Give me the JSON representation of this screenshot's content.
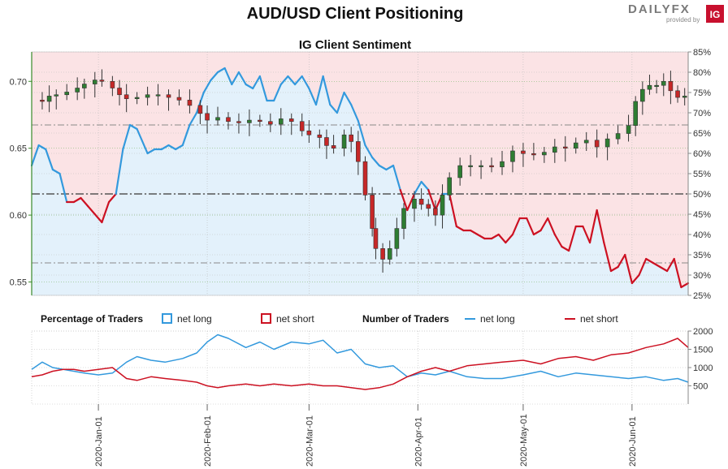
{
  "header": {
    "title": "AUD/USD Client Positioning",
    "logo_text": "DAILYFX",
    "logo_sub": "provided by",
    "logo_badge": "IG"
  },
  "colors": {
    "long": "#3399dd",
    "short": "#cc1122",
    "long_fill": "#e3f1fb",
    "short_fill": "#fbe3e5",
    "up_candle": "#2e7d32",
    "down_candle": "#c62828",
    "left_axis": "#3a8a2a"
  },
  "chart_data": [
    {
      "type": "line",
      "title": "IG Client Sentiment",
      "description_series": [
        "AUD/USD price candles",
        "Client net long %"
      ],
      "left_axis": {
        "ticks": [
          "0.70",
          "0.65",
          "0.60",
          "0.55"
        ],
        "values": [
          0.7,
          0.65,
          0.6,
          0.55
        ],
        "ylim": [
          0.54,
          0.722
        ]
      },
      "right_axis": {
        "ticks": [
          "85%",
          "80%",
          "75%",
          "70%",
          "65%",
          "60%",
          "55%",
          "50%",
          "45%",
          "40%",
          "35%",
          "30%",
          "25%"
        ],
        "values": [
          85,
          80,
          75,
          70,
          65,
          60,
          55,
          50,
          45,
          40,
          35,
          30,
          25
        ],
        "ylim": [
          25,
          85
        ]
      },
      "x_range": [
        "2019-12-13",
        "2020-06-17"
      ],
      "x_ticks": [
        "2020-Jan-01",
        "2020-Feb-01",
        "2020-Mar-01",
        "2020-Apr-01",
        "2020-May-01",
        "2020-Jun-01"
      ],
      "x_tick_dates": [
        "2020-01-01",
        "2020-02-01",
        "2020-03-01",
        "2020-04-01",
        "2020-05-01",
        "2020-06-01"
      ],
      "reference_lines_pct": [
        50,
        33,
        67
      ],
      "price_close_points": [
        [
          "2019-12-13",
          0.686
        ],
        [
          "2019-12-16",
          0.685
        ],
        [
          "2019-12-18",
          0.689
        ],
        [
          "2019-12-20",
          0.69
        ],
        [
          "2019-12-23",
          0.692
        ],
        [
          "2019-12-26",
          0.695
        ],
        [
          "2019-12-28",
          0.698
        ],
        [
          "2019-12-31",
          0.701
        ],
        [
          "2020-01-02",
          0.7
        ],
        [
          "2020-01-05",
          0.695
        ],
        [
          "2020-01-07",
          0.69
        ],
        [
          "2020-01-09",
          0.687
        ],
        [
          "2020-01-12",
          0.688
        ],
        [
          "2020-01-15",
          0.69
        ],
        [
          "2020-01-18",
          0.69
        ],
        [
          "2020-01-21",
          0.688
        ],
        [
          "2020-01-24",
          0.686
        ],
        [
          "2020-01-27",
          0.682
        ],
        [
          "2020-01-30",
          0.676
        ],
        [
          "2020-02-01",
          0.671
        ],
        [
          "2020-02-04",
          0.673
        ],
        [
          "2020-02-07",
          0.67
        ],
        [
          "2020-02-10",
          0.669
        ],
        [
          "2020-02-13",
          0.671
        ],
        [
          "2020-02-16",
          0.67
        ],
        [
          "2020-02-19",
          0.668
        ],
        [
          "2020-02-22",
          0.672
        ],
        [
          "2020-02-25",
          0.67
        ],
        [
          "2020-02-28",
          0.663
        ],
        [
          "2020-03-01",
          0.66
        ],
        [
          "2020-03-04",
          0.658
        ],
        [
          "2020-03-06",
          0.652
        ],
        [
          "2020-03-08",
          0.65
        ],
        [
          "2020-03-11",
          0.66
        ],
        [
          "2020-03-13",
          0.655
        ],
        [
          "2020-03-15",
          0.64
        ],
        [
          "2020-03-17",
          0.615
        ],
        [
          "2020-03-19",
          0.59
        ],
        [
          "2020-03-20",
          0.575
        ],
        [
          "2020-03-22",
          0.567
        ],
        [
          "2020-03-24",
          0.575
        ],
        [
          "2020-03-26",
          0.59
        ],
        [
          "2020-03-28",
          0.605
        ],
        [
          "2020-03-31",
          0.612
        ],
        [
          "2020-04-02",
          0.608
        ],
        [
          "2020-04-04",
          0.605
        ],
        [
          "2020-04-06",
          0.6
        ],
        [
          "2020-04-08",
          0.615
        ],
        [
          "2020-04-10",
          0.628
        ],
        [
          "2020-04-13",
          0.637
        ],
        [
          "2020-04-16",
          0.637
        ],
        [
          "2020-04-19",
          0.637
        ],
        [
          "2020-04-22",
          0.636
        ],
        [
          "2020-04-25",
          0.64
        ],
        [
          "2020-04-28",
          0.648
        ],
        [
          "2020-05-01",
          0.646
        ],
        [
          "2020-05-04",
          0.645
        ],
        [
          "2020-05-07",
          0.647
        ],
        [
          "2020-05-10",
          0.651
        ],
        [
          "2020-05-13",
          0.65
        ],
        [
          "2020-05-16",
          0.654
        ],
        [
          "2020-05-19",
          0.656
        ],
        [
          "2020-05-22",
          0.651
        ],
        [
          "2020-05-25",
          0.657
        ],
        [
          "2020-05-28",
          0.661
        ],
        [
          "2020-05-31",
          0.667
        ],
        [
          "2020-06-02",
          0.685
        ],
        [
          "2020-06-04",
          0.694
        ],
        [
          "2020-06-06",
          0.697
        ],
        [
          "2020-06-08",
          0.697
        ],
        [
          "2020-06-10",
          0.7
        ],
        [
          "2020-06-12",
          0.693
        ],
        [
          "2020-06-14",
          0.688
        ],
        [
          "2020-06-16",
          0.689
        ]
      ],
      "net_long_pct_points": [
        [
          "2019-12-13",
          57
        ],
        [
          "2019-12-15",
          62
        ],
        [
          "2019-12-17",
          61
        ],
        [
          "2019-12-19",
          56
        ],
        [
          "2019-12-21",
          55
        ],
        [
          "2019-12-23",
          48
        ],
        [
          "2019-12-25",
          48
        ],
        [
          "2019-12-27",
          49
        ],
        [
          "2019-12-29",
          47
        ],
        [
          "2019-12-31",
          45
        ],
        [
          "2020-01-02",
          43
        ],
        [
          "2020-01-04",
          48
        ],
        [
          "2020-01-06",
          50
        ],
        [
          "2020-01-08",
          61
        ],
        [
          "2020-01-10",
          67
        ],
        [
          "2020-01-12",
          66
        ],
        [
          "2020-01-15",
          60
        ],
        [
          "2020-01-17",
          61
        ],
        [
          "2020-01-19",
          61
        ],
        [
          "2020-01-21",
          62
        ],
        [
          "2020-01-23",
          61
        ],
        [
          "2020-01-25",
          62
        ],
        [
          "2020-01-27",
          67
        ],
        [
          "2020-01-29",
          70
        ],
        [
          "2020-01-31",
          75
        ],
        [
          "2020-02-02",
          78
        ],
        [
          "2020-02-04",
          80
        ],
        [
          "2020-02-06",
          81
        ],
        [
          "2020-02-08",
          77
        ],
        [
          "2020-02-10",
          80
        ],
        [
          "2020-02-12",
          77
        ],
        [
          "2020-02-14",
          76
        ],
        [
          "2020-02-16",
          79
        ],
        [
          "2020-02-18",
          73
        ],
        [
          "2020-02-20",
          73
        ],
        [
          "2020-02-22",
          77
        ],
        [
          "2020-02-24",
          79
        ],
        [
          "2020-02-26",
          77
        ],
        [
          "2020-02-28",
          79
        ],
        [
          "2020-03-01",
          76
        ],
        [
          "2020-03-03",
          72
        ],
        [
          "2020-03-05",
          79
        ],
        [
          "2020-03-07",
          72
        ],
        [
          "2020-03-09",
          70
        ],
        [
          "2020-03-11",
          75
        ],
        [
          "2020-03-13",
          72
        ],
        [
          "2020-03-15",
          68
        ],
        [
          "2020-03-17",
          62
        ],
        [
          "2020-03-19",
          59
        ],
        [
          "2020-03-21",
          57
        ],
        [
          "2020-03-23",
          56
        ],
        [
          "2020-03-25",
          57
        ],
        [
          "2020-03-27",
          51
        ],
        [
          "2020-03-29",
          46
        ],
        [
          "2020-03-31",
          50
        ],
        [
          "2020-04-02",
          53
        ],
        [
          "2020-04-04",
          51
        ],
        [
          "2020-04-06",
          46
        ],
        [
          "2020-04-08",
          50
        ],
        [
          "2020-04-10",
          50
        ],
        [
          "2020-04-12",
          42
        ],
        [
          "2020-04-14",
          41
        ],
        [
          "2020-04-16",
          41
        ],
        [
          "2020-04-18",
          40
        ],
        [
          "2020-04-20",
          39
        ],
        [
          "2020-04-22",
          39
        ],
        [
          "2020-04-24",
          40
        ],
        [
          "2020-04-26",
          38
        ],
        [
          "2020-04-28",
          40
        ],
        [
          "2020-04-30",
          44
        ],
        [
          "2020-05-02",
          44
        ],
        [
          "2020-05-04",
          40
        ],
        [
          "2020-05-06",
          41
        ],
        [
          "2020-05-08",
          44
        ],
        [
          "2020-05-10",
          40
        ],
        [
          "2020-05-12",
          37
        ],
        [
          "2020-05-14",
          36
        ],
        [
          "2020-05-16",
          42
        ],
        [
          "2020-05-18",
          42
        ],
        [
          "2020-05-20",
          38
        ],
        [
          "2020-05-22",
          46
        ],
        [
          "2020-05-24",
          38
        ],
        [
          "2020-05-26",
          31
        ],
        [
          "2020-05-28",
          32
        ],
        [
          "2020-05-30",
          35
        ],
        [
          "2020-06-01",
          28
        ],
        [
          "2020-06-03",
          30
        ],
        [
          "2020-06-05",
          34
        ],
        [
          "2020-06-07",
          33
        ],
        [
          "2020-06-09",
          32
        ],
        [
          "2020-06-11",
          31
        ],
        [
          "2020-06-13",
          34
        ],
        [
          "2020-06-15",
          27
        ],
        [
          "2020-06-17",
          28
        ]
      ]
    },
    {
      "type": "line",
      "title": "",
      "legend": {
        "percentage_label": "Percentage of Traders",
        "number_label": "Number of Traders",
        "items": [
          {
            "name": "net long",
            "kind": "box",
            "color_key": "long"
          },
          {
            "name": "net short",
            "kind": "box",
            "color_key": "short"
          },
          {
            "name": "net long",
            "kind": "line",
            "color_key": "long"
          },
          {
            "name": "net short",
            "kind": "line",
            "color_key": "short"
          }
        ]
      },
      "y_ticks": [
        "2000",
        "1500",
        "1000",
        "500"
      ],
      "y_values": [
        2000,
        1500,
        1000,
        500
      ],
      "ylim": [
        0,
        2000
      ],
      "x_range": [
        "2019-12-13",
        "2020-06-17"
      ],
      "series": [
        {
          "name": "net long",
          "points": [
            [
              "2019-12-13",
              950
            ],
            [
              "2019-12-16",
              1150
            ],
            [
              "2019-12-19",
              1000
            ],
            [
              "2019-12-22",
              950
            ],
            [
              "2019-12-25",
              900
            ],
            [
              "2019-12-28",
              850
            ],
            [
              "2020-01-01",
              800
            ],
            [
              "2020-01-05",
              850
            ],
            [
              "2020-01-09",
              1150
            ],
            [
              "2020-01-12",
              1300
            ],
            [
              "2020-01-16",
              1200
            ],
            [
              "2020-01-20",
              1150
            ],
            [
              "2020-01-25",
              1250
            ],
            [
              "2020-01-29",
              1400
            ],
            [
              "2020-02-01",
              1700
            ],
            [
              "2020-02-04",
              1900
            ],
            [
              "2020-02-07",
              1800
            ],
            [
              "2020-02-12",
              1550
            ],
            [
              "2020-02-16",
              1700
            ],
            [
              "2020-02-20",
              1500
            ],
            [
              "2020-02-25",
              1700
            ],
            [
              "2020-03-01",
              1650
            ],
            [
              "2020-03-05",
              1750
            ],
            [
              "2020-03-09",
              1400
            ],
            [
              "2020-03-13",
              1500
            ],
            [
              "2020-03-17",
              1100
            ],
            [
              "2020-03-21",
              1000
            ],
            [
              "2020-03-25",
              1050
            ],
            [
              "2020-03-29",
              750
            ],
            [
              "2020-04-02",
              850
            ],
            [
              "2020-04-06",
              800
            ],
            [
              "2020-04-10",
              900
            ],
            [
              "2020-04-15",
              750
            ],
            [
              "2020-04-20",
              700
            ],
            [
              "2020-04-25",
              700
            ],
            [
              "2020-05-01",
              800
            ],
            [
              "2020-05-06",
              900
            ],
            [
              "2020-05-11",
              750
            ],
            [
              "2020-05-16",
              850
            ],
            [
              "2020-05-21",
              800
            ],
            [
              "2020-05-26",
              750
            ],
            [
              "2020-05-31",
              700
            ],
            [
              "2020-06-05",
              750
            ],
            [
              "2020-06-10",
              650
            ],
            [
              "2020-06-14",
              700
            ],
            [
              "2020-06-17",
              600
            ]
          ]
        },
        {
          "name": "net short",
          "points": [
            [
              "2019-12-13",
              750
            ],
            [
              "2019-12-16",
              800
            ],
            [
              "2019-12-19",
              900
            ],
            [
              "2019-12-22",
              950
            ],
            [
              "2019-12-25",
              950
            ],
            [
              "2019-12-28",
              900
            ],
            [
              "2020-01-01",
              950
            ],
            [
              "2020-01-05",
              1000
            ],
            [
              "2020-01-09",
              700
            ],
            [
              "2020-01-12",
              650
            ],
            [
              "2020-01-16",
              750
            ],
            [
              "2020-01-20",
              700
            ],
            [
              "2020-01-25",
              650
            ],
            [
              "2020-01-29",
              600
            ],
            [
              "2020-02-01",
              500
            ],
            [
              "2020-02-04",
              450
            ],
            [
              "2020-02-07",
              500
            ],
            [
              "2020-02-12",
              550
            ],
            [
              "2020-02-16",
              500
            ],
            [
              "2020-02-20",
              550
            ],
            [
              "2020-02-25",
              500
            ],
            [
              "2020-03-01",
              550
            ],
            [
              "2020-03-05",
              500
            ],
            [
              "2020-03-09",
              500
            ],
            [
              "2020-03-13",
              450
            ],
            [
              "2020-03-17",
              400
            ],
            [
              "2020-03-21",
              450
            ],
            [
              "2020-03-25",
              550
            ],
            [
              "2020-03-29",
              750
            ],
            [
              "2020-04-02",
              900
            ],
            [
              "2020-04-06",
              1000
            ],
            [
              "2020-04-10",
              900
            ],
            [
              "2020-04-15",
              1050
            ],
            [
              "2020-04-20",
              1100
            ],
            [
              "2020-04-25",
              1150
            ],
            [
              "2020-05-01",
              1200
            ],
            [
              "2020-05-06",
              1100
            ],
            [
              "2020-05-11",
              1250
            ],
            [
              "2020-05-16",
              1300
            ],
            [
              "2020-05-21",
              1200
            ],
            [
              "2020-05-26",
              1350
            ],
            [
              "2020-05-31",
              1400
            ],
            [
              "2020-06-05",
              1550
            ],
            [
              "2020-06-10",
              1650
            ],
            [
              "2020-06-14",
              1800
            ],
            [
              "2020-06-17",
              1550
            ]
          ]
        }
      ]
    }
  ]
}
